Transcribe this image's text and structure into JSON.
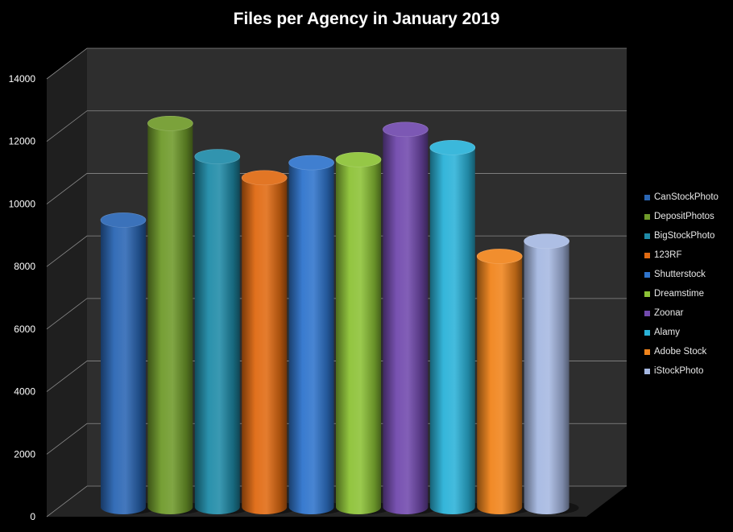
{
  "chart_data": {
    "type": "bar",
    "title": "Files per Agency in January 2019",
    "xlabel": "",
    "ylabel": "",
    "ylim": [
      0,
      14000
    ],
    "yticks": [
      0,
      2000,
      4000,
      6000,
      8000,
      10000,
      12000,
      14000
    ],
    "grid": true,
    "legend_position": "right",
    "series": [
      {
        "name": "CanStockPhoto",
        "value": 9500,
        "color": "#2a66b4"
      },
      {
        "name": "DepositPhotos",
        "value": 12700,
        "color": "#6f9a2a"
      },
      {
        "name": "BigStockPhoto",
        "value": 11600,
        "color": "#1f8ba8"
      },
      {
        "name": "123RF",
        "value": 10900,
        "color": "#e06a12"
      },
      {
        "name": "Shutterstock",
        "value": 11400,
        "color": "#2f74cc"
      },
      {
        "name": "Dreamstime",
        "value": 11500,
        "color": "#8cc236"
      },
      {
        "name": "Zoonar",
        "value": 12500,
        "color": "#7149ad"
      },
      {
        "name": "Alamy",
        "value": 11900,
        "color": "#2ab2d8"
      },
      {
        "name": "Adobe Stock",
        "value": 8300,
        "color": "#f0841c"
      },
      {
        "name": "iStockPhoto",
        "value": 8800,
        "color": "#a6b8e2"
      }
    ]
  }
}
